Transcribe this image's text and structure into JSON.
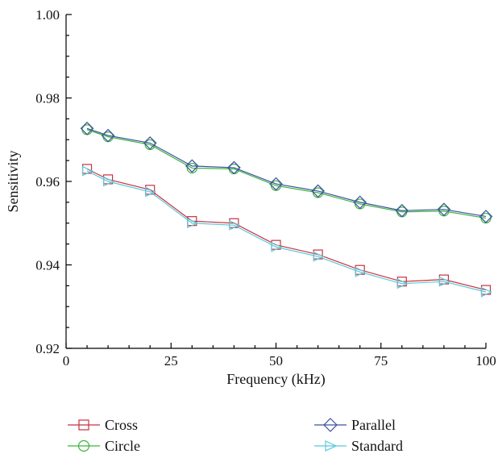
{
  "chart_data": {
    "type": "line",
    "title": "",
    "xlabel": "Frequency (kHz)",
    "ylabel": "Sensitivity",
    "xlim": [
      0,
      100
    ],
    "ylim": [
      0.92,
      1.0
    ],
    "xticks": [
      0,
      25,
      50,
      75,
      100
    ],
    "xtick_labels": [
      "0",
      "25",
      "50",
      "75",
      "100"
    ],
    "yticks": [
      0.92,
      0.94,
      0.96,
      0.98,
      1.0
    ],
    "ytick_labels": [
      "0.92",
      "0.94",
      "0.96",
      "0.98",
      "1.00"
    ],
    "grid": false,
    "legend_position": "bottom",
    "x": [
      5,
      10,
      20,
      30,
      40,
      50,
      60,
      70,
      80,
      90,
      100
    ],
    "series": [
      {
        "name": "Cross",
        "color": "#c8323c",
        "marker": "square",
        "values": [
          0.963,
          0.9605,
          0.958,
          0.9505,
          0.95,
          0.9448,
          0.9425,
          0.9388,
          0.936,
          0.9365,
          0.934
        ]
      },
      {
        "name": "Circle",
        "color": "#3cb43c",
        "marker": "circle",
        "values": [
          0.9724,
          0.9707,
          0.9688,
          0.9632,
          0.963,
          0.959,
          0.9573,
          0.9546,
          0.9527,
          0.9529,
          0.9512
        ]
      },
      {
        "name": "Parallel",
        "color": "#3c50a0",
        "marker": "diamond",
        "values": [
          0.9727,
          0.971,
          0.9692,
          0.9637,
          0.9633,
          0.9594,
          0.9577,
          0.955,
          0.953,
          0.9533,
          0.9516
        ]
      },
      {
        "name": "Standard",
        "color": "#5ac8dc",
        "marker": "triangle-right",
        "values": [
          0.9625,
          0.96,
          0.9575,
          0.95,
          0.9495,
          0.9443,
          0.942,
          0.9383,
          0.9355,
          0.936,
          0.9335
        ]
      }
    ]
  }
}
